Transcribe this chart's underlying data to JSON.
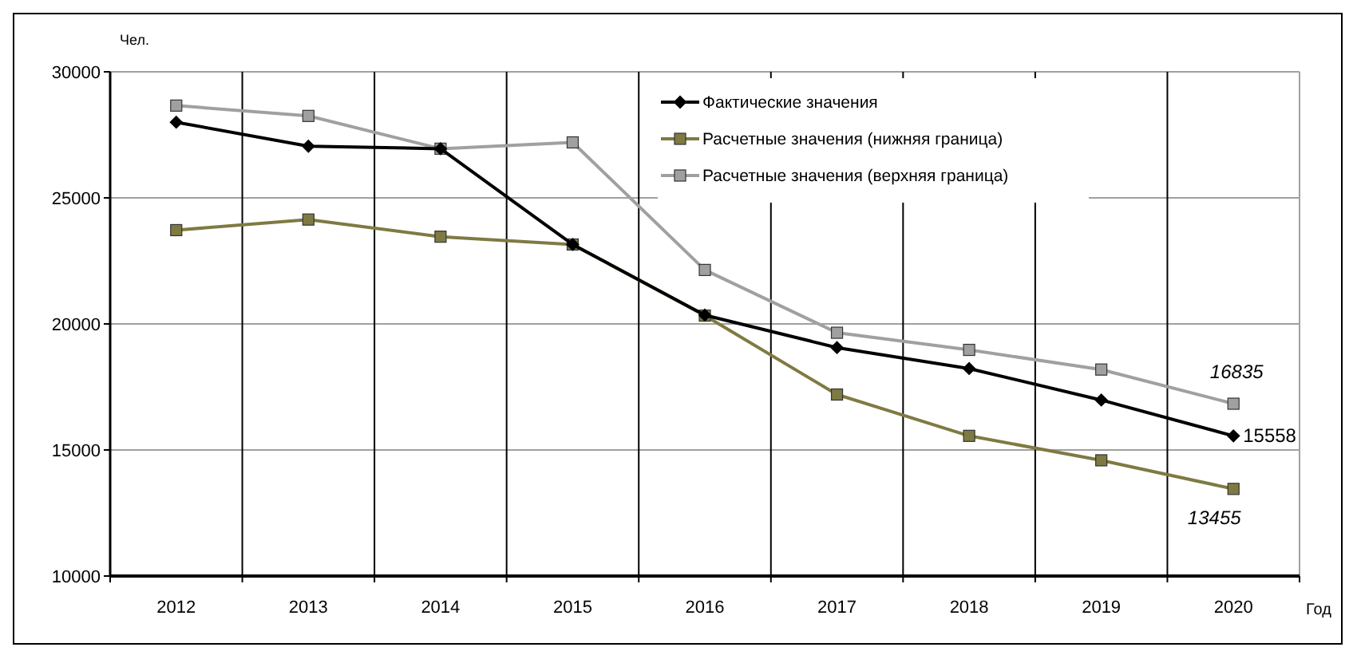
{
  "chart_data": {
    "type": "line",
    "ylabel": "Чел.",
    "xlabel": "Год",
    "categories": [
      "2012",
      "2013",
      "2014",
      "2015",
      "2016",
      "2017",
      "2018",
      "2019",
      "2020"
    ],
    "ylim": [
      10000,
      30000
    ],
    "yticks": [
      10000,
      15000,
      20000,
      25000,
      30000
    ],
    "grid": true,
    "legend": "top right",
    "series": [
      {
        "name": "Фактические значения",
        "color": "#000000",
        "marker": "diamond",
        "values": [
          28000,
          27050,
          26950,
          23150,
          20350,
          19060,
          18230,
          16980,
          15558
        ],
        "value_labels": [
          null,
          null,
          null,
          null,
          null,
          null,
          null,
          null,
          "15558"
        ]
      },
      {
        "name": "Расчетные значения (нижняя граница)",
        "color": "#7f7a42",
        "marker": "square",
        "values": [
          23720,
          24140,
          23460,
          23150,
          20330,
          17200,
          15560,
          14590,
          13455
        ],
        "value_labels": [
          null,
          null,
          null,
          null,
          null,
          null,
          null,
          null,
          "13455"
        ]
      },
      {
        "name": "Расчетные значения (верхняя граница)",
        "color": "#a0a0a0",
        "marker": "square",
        "values": [
          28660,
          28250,
          26950,
          27200,
          22140,
          19650,
          18970,
          18190,
          16835
        ],
        "value_labels": [
          null,
          null,
          null,
          null,
          null,
          null,
          null,
          null,
          "16835"
        ]
      }
    ]
  }
}
